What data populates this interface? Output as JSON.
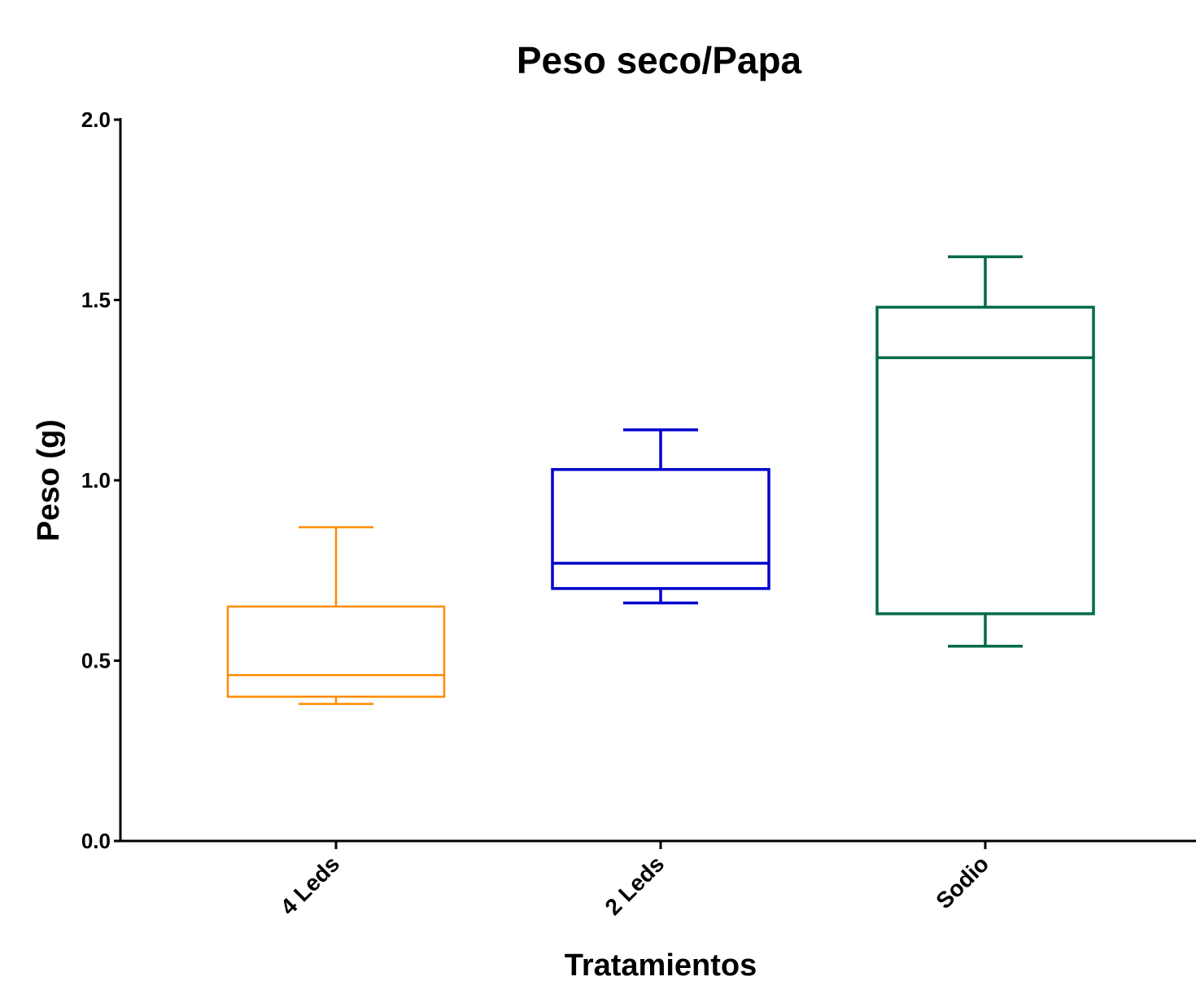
{
  "chart_data": {
    "type": "box",
    "title": "Peso seco/Papa",
    "xlabel": "Tratamientos",
    "ylabel": "Peso (g)",
    "ylim": [
      0.0,
      2.0
    ],
    "yticks": [
      "0.0",
      "0.5",
      "1.0",
      "1.5",
      "2.0"
    ],
    "grid": false,
    "categories": [
      "4 Leds",
      "2 Leds",
      "Sodio"
    ],
    "boxes": [
      {
        "category": "4 Leds",
        "color": "#FF8C00",
        "min": 0.38,
        "q1": 0.4,
        "median": 0.46,
        "q3": 0.65,
        "max": 0.87
      },
      {
        "category": "2 Leds",
        "color": "#0000CD",
        "min": 0.66,
        "q1": 0.7,
        "median": 0.77,
        "q3": 1.03,
        "max": 1.14
      },
      {
        "category": "Sodio",
        "color": "#006B45",
        "min": 0.54,
        "q1": 0.63,
        "median": 1.34,
        "q3": 1.48,
        "max": 1.62
      }
    ]
  }
}
